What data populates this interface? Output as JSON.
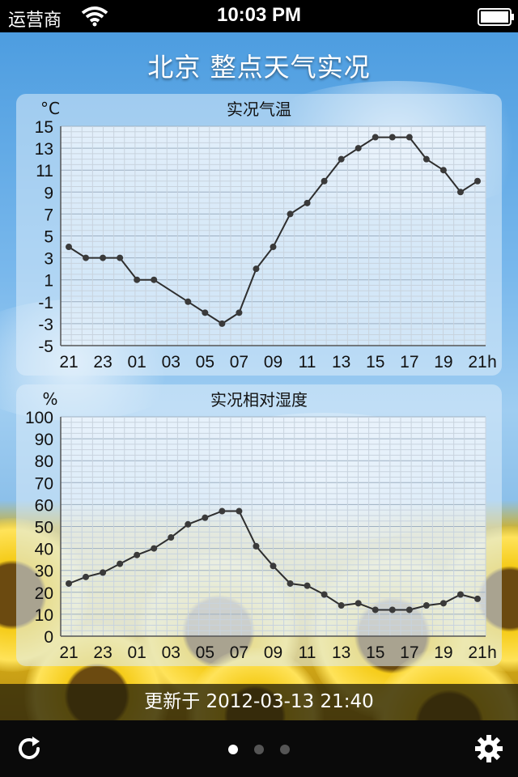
{
  "status_bar": {
    "carrier": "运营商",
    "time": "10:03 PM"
  },
  "page_title": "北京 整点天气实况",
  "update_text": "更新于 2012-03-13 21:40",
  "pager": {
    "count": 3,
    "active": 0
  },
  "chart_data": [
    {
      "type": "line",
      "title": "实况气温",
      "ylabel": "°C",
      "xunit": "h",
      "ylim": [
        -5,
        15
      ],
      "yticks": [
        "15",
        "13",
        "11",
        "9",
        "7",
        "5",
        "3",
        "1",
        "-1",
        "-3",
        "-5"
      ],
      "xticks": [
        "21",
        "23",
        "01",
        "03",
        "05",
        "07",
        "09",
        "11",
        "13",
        "15",
        "17",
        "19",
        "21"
      ],
      "x": [
        "21",
        "22",
        "23",
        "00",
        "01",
        "02",
        "03",
        "04",
        "05",
        "06",
        "07",
        "08",
        "09",
        "10",
        "11",
        "12",
        "13",
        "14",
        "15",
        "16",
        "17",
        "18",
        "19",
        "20",
        "21"
      ],
      "values": [
        4,
        3,
        3,
        3,
        1,
        1,
        null,
        -1,
        -2,
        -3,
        -2,
        2,
        4,
        7,
        8,
        10,
        12,
        13,
        14,
        14,
        14,
        12,
        11,
        9,
        10
      ],
      "grid": true
    },
    {
      "type": "line",
      "title": "实况相对湿度",
      "ylabel": "%",
      "xunit": "h",
      "ylim": [
        0,
        100
      ],
      "yticks": [
        "100",
        "90",
        "80",
        "70",
        "60",
        "50",
        "40",
        "30",
        "20",
        "10",
        "0"
      ],
      "xticks": [
        "21",
        "23",
        "01",
        "03",
        "05",
        "07",
        "09",
        "11",
        "13",
        "15",
        "17",
        "19",
        "21"
      ],
      "x": [
        "21",
        "22",
        "23",
        "00",
        "01",
        "02",
        "03",
        "04",
        "05",
        "06",
        "07",
        "08",
        "09",
        "10",
        "11",
        "12",
        "13",
        "14",
        "15",
        "16",
        "17",
        "18",
        "19",
        "20",
        "21"
      ],
      "values": [
        24,
        27,
        29,
        33,
        37,
        40,
        45,
        51,
        54,
        57,
        57,
        41,
        32,
        24,
        23,
        19,
        14,
        15,
        12,
        12,
        12,
        14,
        15,
        19,
        17
      ],
      "grid": true
    }
  ]
}
